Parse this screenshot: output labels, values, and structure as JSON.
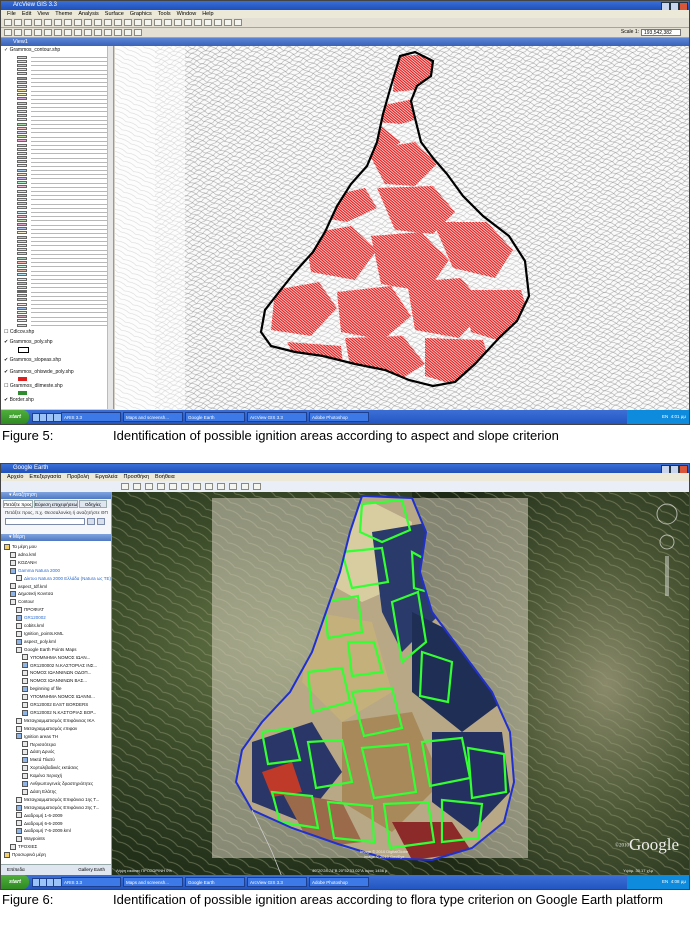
{
  "figure5": {
    "window_title": "ArcView GIS 3.3",
    "menus": [
      "File",
      "Edit",
      "View",
      "Theme",
      "Analysis",
      "Surface",
      "Graphics",
      "Tools",
      "Window",
      "Help"
    ],
    "scale_label": "Scale 1:",
    "scale_value": "193,542,382",
    "view_title": "View1",
    "layers": [
      {
        "name": "Grammos_contour.shp",
        "checked": false
      },
      {
        "name": "Cdlcov.shp",
        "checked": false
      },
      {
        "name": "Grammos_poly.shp",
        "checked": true
      },
      {
        "name": "Grammos_slopeas.shp",
        "checked": true
      },
      {
        "name": "Grammos_ohiswde_poly.shp",
        "checked": true
      },
      {
        "name": "Grammos_dlimeste.shp",
        "checked": false
      },
      {
        "name": "Border.shp",
        "checked": true
      }
    ],
    "legend_colors": [
      "#f0c8e0",
      "#e8e0a0",
      "#c8c8f0",
      "#d0f0d0",
      "#f8d8b0",
      "#a0a0a0",
      "#c0c0c0",
      "#e0e0e0",
      "#f0e0a0",
      "#f8f8c0",
      "#d8b0e0",
      "#b0e0b0",
      "#f0b0b0",
      "#c8e8f8",
      "#e0c8a0",
      "#f0f0a0",
      "#a8d8a8",
      "#f8c8c8",
      "#d0d0f0",
      "#c0e0a0",
      "#e8a8d0",
      "#b8e0e0",
      "#f0d0a0",
      "#d8f0b0",
      "#f0a8a8",
      "#c8d0f8",
      "#e8e8b8",
      "#a8c8e8",
      "#f8e0c8",
      "#d0b8f0",
      "#b0f0c8",
      "#f0c0d8",
      "#e0f0a8",
      "#c8b0a8",
      "#f8d0f0",
      "#a8e8d0",
      "#e8d8c0",
      "#d0e8f0",
      "#f0b8c8",
      "#c0d8b0",
      "#e0a8c8",
      "#b8c8f0",
      "#f8f0d0",
      "#d8c0b0",
      "#a8f0e0",
      "#f0d8e8",
      "#c8f0b8",
      "#e8c8f0",
      "#b0d0c0",
      "#f8b8b0",
      "#d0f8e0",
      "#e0b8a8",
      "#b8e8f8",
      "#f0e8c0",
      "#c0b8d8",
      "#d8e0b0",
      "#2e8b2e",
      "#f0c0a0",
      "#c8c8a0",
      "#f8e8e8",
      "#a0c0f0",
      "#e8f0e0",
      "#d0a8b8",
      "#f0f0f0",
      "#f8d0d0"
    ],
    "taskbar": [
      "start",
      "ARIS 3.3",
      "Maps and screensh...",
      "Google Earth",
      "ArcView GIS 3.3",
      "Adobe Photoshop"
    ],
    "clock": "4:01 μμ",
    "lang": "EN"
  },
  "caption5": {
    "number": "Figure 5:",
    "text": "Identification of possible ignition areas according to aspect and slope criterion"
  },
  "figure6": {
    "window_title": "Google Earth",
    "menus": [
      "Αρχείο",
      "Επεξεργασία",
      "Προβολή",
      "Εργαλεία",
      "Προσθήκη",
      "Βοήθεια"
    ],
    "search_section": "Αναζήτηση",
    "tabs": [
      "Πετάξτε προς",
      "Εύρεση επιχειρήσεων",
      "Οδηγίες"
    ],
    "search_label": "Πετάξτε προς, π.χ. Θεσσαλονίκη ή αναζητήστε ΘΠ",
    "places_section": "Μέρη",
    "places": [
      {
        "label": "Τα μέρη μου",
        "indent": 0
      },
      {
        "label": "adno.kml",
        "indent": 1
      },
      {
        "label": "ΚΟΖΑΝΗ",
        "indent": 1
      },
      {
        "label": "Gamma Natura 2000",
        "indent": 1,
        "sub": true
      },
      {
        "label": "Δίκτυο Natura 2000 Ελλάδα (Natura ως ΤΕ)",
        "indent": 2,
        "sub": true
      },
      {
        "label": "aspect_tdf.kml",
        "indent": 1
      },
      {
        "label": "Δημοτική Κονιτσα",
        "indent": 1
      },
      {
        "label": "Contour",
        "indent": 1
      },
      {
        "label": "ΠΡΟΦΙΛΤ",
        "indent": 2
      },
      {
        "label": "GR120002",
        "indent": 2,
        "sub": true
      },
      {
        "label": "cobits.kml",
        "indent": 2
      },
      {
        "label": "Ignition_points.KML",
        "indent": 2
      },
      {
        "label": "aspect_poly.kml",
        "indent": 2
      },
      {
        "label": "Google Earth Points Maps",
        "indent": 2
      },
      {
        "label": "ΥΠΟΜΝΗΜΑ ΝΟΜΟΣ ΙΩΑΝ...",
        "indent": 3
      },
      {
        "label": "GR1200002 N.ΚΑΣΤΟΡΙΑΣ ΙΝΣ...",
        "indent": 3
      },
      {
        "label": "ΝΟΜΟΣ ΙΩΑΝΝΙΝΩΝ ΟΔΟΠ...",
        "indent": 3
      },
      {
        "label": "ΝΟΜΟΣ ΙΩΑΝΝΙΝΩΝ ΒΑΣ...",
        "indent": 3
      },
      {
        "label": "beginning of file",
        "indent": 3
      },
      {
        "label": "ΥΠΟΜΝΗΜΑ ΝΟΜΟΣ ΙΩΑΝΝΙ...",
        "indent": 3
      },
      {
        "label": "GR120002 EAST BORDERS",
        "indent": 3
      },
      {
        "label": "GR120002 N.ΚΑΣΤΟΡΙΑΣ ΒΟΡ...",
        "indent": 3
      },
      {
        "label": "Μεταγραμματισμός Επιφάνειας ΙΚΑ",
        "indent": 2
      },
      {
        "label": "Μεταγραμματισμός επιφαν",
        "indent": 2
      },
      {
        "label": "Ignition areas TH",
        "indent": 2
      },
      {
        "label": "Περισσότερα",
        "indent": 3
      },
      {
        "label": "Δάση Δρυός",
        "indent": 3
      },
      {
        "label": "Μικτά Πλατύ",
        "indent": 3
      },
      {
        "label": "Χορτολιβαδικές εκτάσεις",
        "indent": 3
      },
      {
        "label": "Καμένα περιοχή",
        "indent": 3
      },
      {
        "label": "Ανθρωπογενείς δραστηριότητες",
        "indent": 3
      },
      {
        "label": "Δάση Ελάτης",
        "indent": 3
      },
      {
        "label": "Μεταγραμματισμός Επιφάνεια 1ης Τ...",
        "indent": 2
      },
      {
        "label": "Μεταγραμματισμός Επιφάνεια 2ης Τ...",
        "indent": 2
      },
      {
        "label": "Διαδρομή 1-6-2009",
        "indent": 2
      },
      {
        "label": "Διαδρομή 6-6-2009",
        "indent": 2
      },
      {
        "label": "Διαδρομή 7-6-2009.kml",
        "indent": 2
      },
      {
        "label": "Waypoints",
        "indent": 2
      },
      {
        "label": "ΤΡΟΧΙΕΣ",
        "indent": 1
      },
      {
        "label": "Προσωρινά μέρη",
        "indent": 0
      }
    ],
    "layers_label": "Επίπεδα",
    "gallery_label": "Gallery Earth",
    "status_left": "Λήψη εικόνας ΠΡΟΣΩΡΙΝΗ 0%",
    "status_coords": "40°20'28.74\"Β  20°52'53.02\"Α  ύψος 1456 μ",
    "status_right": "Υψόμ. 30.17 χλμ",
    "copyright1": "Image © 2010 DigitalGlobe",
    "copyright2": "Image © 2010 GeoEye",
    "google_logo": "Google",
    "logo_year": "©2010",
    "taskbar": [
      "start",
      "ARIS 3.3",
      "Maps and screensh...",
      "Google Earth",
      "ArcView GIS 3.3",
      "Adobe Photoshop"
    ],
    "clock": "4:08 μμ",
    "lang": "EN"
  },
  "caption6": {
    "number": "Figure 6:",
    "text": "Identification of possible ignition areas according to flora type criterion on Google Earth platform"
  }
}
